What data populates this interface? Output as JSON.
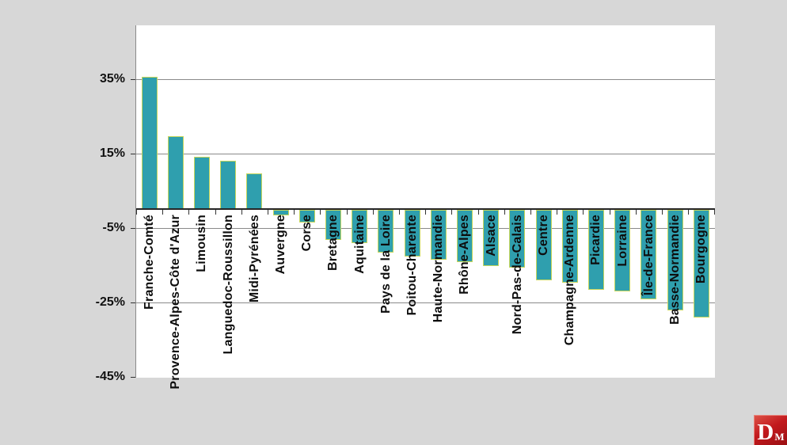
{
  "page": {
    "background_color": "#d7d7d7",
    "panel_color": "#ffffff"
  },
  "branding": {
    "logo_main": "D",
    "logo_sub": "M",
    "logo_color": "#c2191d"
  },
  "chart_data": {
    "type": "bar",
    "title": "",
    "xlabel": "",
    "ylabel": "",
    "categories": [
      "Franche-Comté",
      "Provence-Alpes-Côte d'Azur",
      "Limousin",
      "Languedoc-Roussillon",
      "Midi-Pyrénées",
      "Auvergne",
      "Corse",
      "Bretagne",
      "Aquitaine",
      "Pays de la Loire",
      "Poitou-Charente",
      "Haute-Normandie",
      "Rhône-Alpes",
      "Alsace",
      "Nord-Pas-de-Calais",
      "Centre",
      "Champagne-Ardenne",
      "Picardie",
      "Lorraine",
      "Île-de-France",
      "Basse-Normandie",
      "Bourgogne"
    ],
    "values": [
      35.5,
      19.5,
      14,
      13,
      9.5,
      -1.5,
      -3.5,
      -8,
      -9,
      -11.5,
      -12.5,
      -13.5,
      -14,
      -15,
      -15.5,
      -19,
      -19.5,
      -21.5,
      -22,
      -24,
      -27,
      -29
    ],
    "unit": "%",
    "y_ticks": [
      35,
      15,
      -5,
      -25,
      -45
    ],
    "y_tick_labels": [
      "35%",
      "15%",
      "-5%",
      "-25%",
      "-45%"
    ],
    "ylim": [
      -45,
      50
    ],
    "grid": true,
    "legend": "none",
    "bar_color": "#2f9fae",
    "bar_edge_color": "#c6d65a",
    "x_label_rotation": -90
  }
}
